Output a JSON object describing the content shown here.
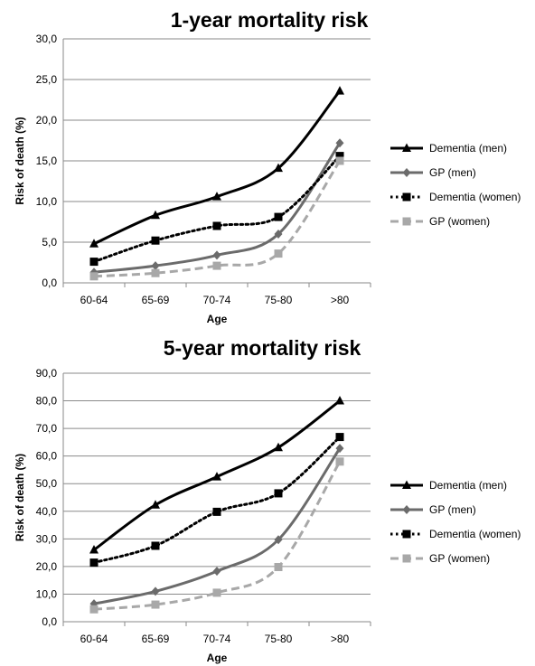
{
  "chart_data": [
    {
      "type": "line",
      "title": "1-year mortality risk",
      "xlabel": "Age",
      "ylabel": "Risk of death (%)",
      "categories": [
        "60-64",
        "65-69",
        "70-74",
        "75-80",
        ">80"
      ],
      "ylim": [
        0,
        30
      ],
      "ytick_labels": [
        "0,0",
        "5,0",
        "10,0",
        "15,0",
        "20,0",
        "25,0",
        "30,0"
      ],
      "ytick_values": [
        0,
        5,
        10,
        15,
        20,
        25,
        30
      ],
      "grid": true,
      "legend_position": "right",
      "series": [
        {
          "name": "Dementia (men)",
          "values": [
            4.8,
            8.3,
            10.6,
            14.1,
            23.6
          ],
          "color": "#000000",
          "dash": "solid",
          "marker": "triangle"
        },
        {
          "name": "GP (men)",
          "values": [
            1.3,
            2.1,
            3.4,
            6.0,
            17.2
          ],
          "color": "#6b6b6b",
          "dash": "solid",
          "marker": "diamond"
        },
        {
          "name": "Dementia (women)",
          "values": [
            2.6,
            5.2,
            7.0,
            8.1,
            15.6
          ],
          "color": "#000000",
          "dash": "dotted",
          "marker": "square"
        },
        {
          "name": "GP (women)",
          "values": [
            0.8,
            1.2,
            2.1,
            3.6,
            15.0
          ],
          "color": "#a8a8a8",
          "dash": "dashed",
          "marker": "square"
        }
      ]
    },
    {
      "type": "line",
      "title": "5-year mortality risk",
      "xlabel": "Age",
      "ylabel": "Risk of death (%)",
      "categories": [
        "60-64",
        "65-69",
        "70-74",
        "75-80",
        ">80"
      ],
      "ylim": [
        0,
        90
      ],
      "ytick_labels": [
        "0,0",
        "10,0",
        "20,0",
        "30,0",
        "40,0",
        "50,0",
        "60,0",
        "70,0",
        "80,0",
        "90,0"
      ],
      "ytick_values": [
        0,
        10,
        20,
        30,
        40,
        50,
        60,
        70,
        80,
        90
      ],
      "grid": true,
      "legend_position": "right",
      "series": [
        {
          "name": "Dementia (men)",
          "values": [
            26.0,
            42.3,
            52.5,
            63.1,
            80.0
          ],
          "color": "#000000",
          "dash": "solid",
          "marker": "triangle"
        },
        {
          "name": "GP (men)",
          "values": [
            6.5,
            11.0,
            18.3,
            29.7,
            62.8
          ],
          "color": "#6b6b6b",
          "dash": "solid",
          "marker": "diamond"
        },
        {
          "name": "Dementia (women)",
          "values": [
            21.4,
            27.5,
            39.8,
            46.5,
            66.9
          ],
          "color": "#000000",
          "dash": "dotted",
          "marker": "square"
        },
        {
          "name": "GP (women)",
          "values": [
            4.5,
            6.2,
            10.5,
            19.8,
            58.0
          ],
          "color": "#a8a8a8",
          "dash": "dashed",
          "marker": "square"
        }
      ]
    }
  ]
}
